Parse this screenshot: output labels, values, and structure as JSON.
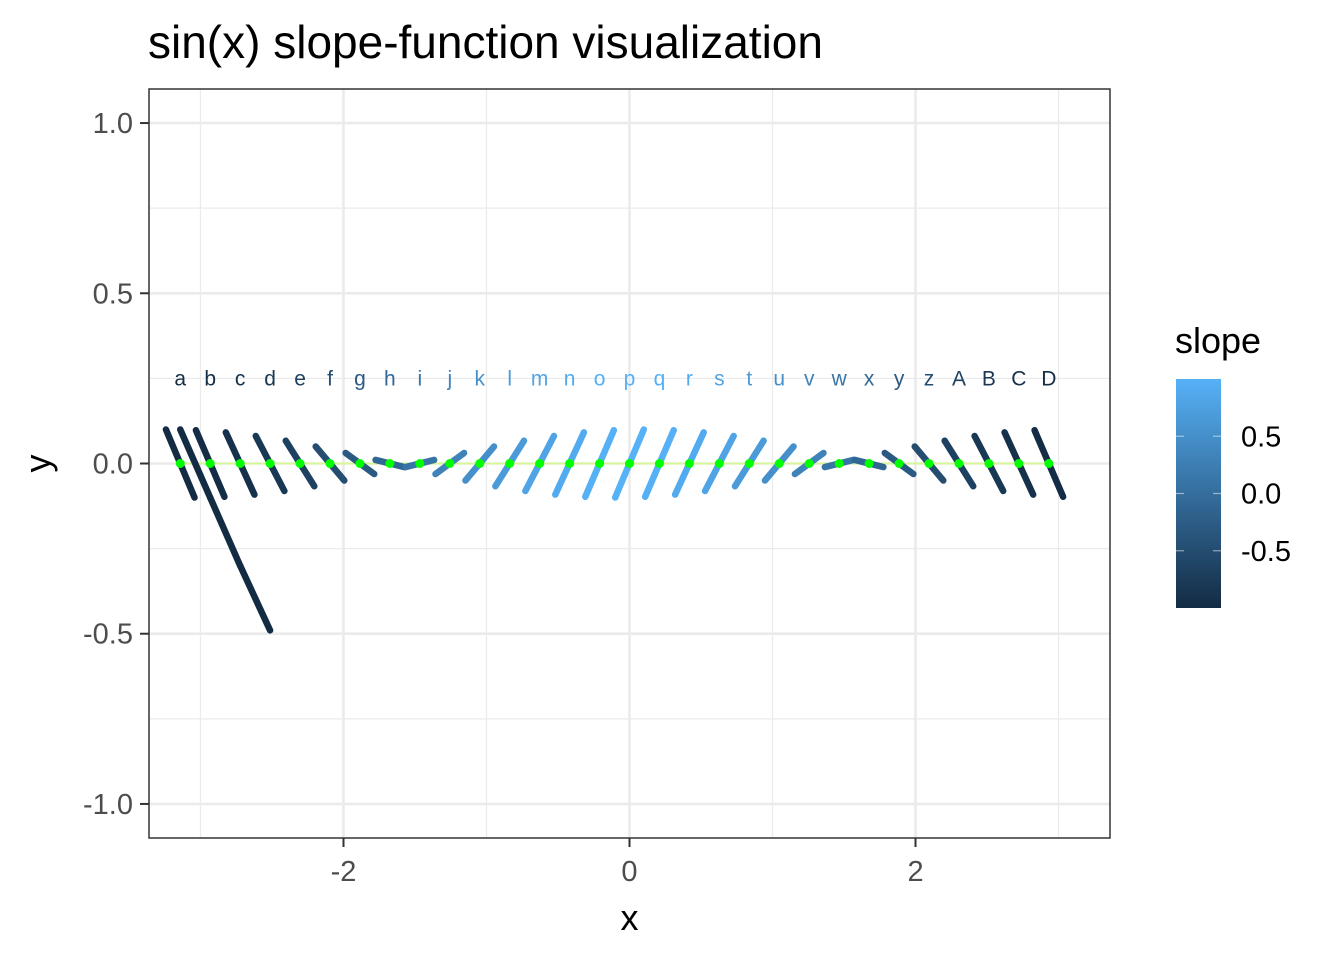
{
  "chart_data": {
    "type": "line",
    "title": "sin(x) slope-function visualization",
    "xlabel": "x",
    "ylabel": "y",
    "xlim": [
      -3.36,
      3.36
    ],
    "ylim": [
      -1.1,
      1.1
    ],
    "x_ticks": [
      {
        "value": -2,
        "label": "-2"
      },
      {
        "value": 0,
        "label": "0"
      },
      {
        "value": 2,
        "label": "2"
      }
    ],
    "y_ticks": [
      {
        "value": 1.0,
        "label": "1.0"
      },
      {
        "value": 0.5,
        "label": "0.5"
      },
      {
        "value": 0.0,
        "label": "0.0"
      },
      {
        "value": -0.5,
        "label": "-0.5"
      },
      {
        "value": -1.0,
        "label": "-1.0"
      }
    ],
    "grid": true,
    "label_y": 0.25,
    "points": [
      {
        "label": "a",
        "x": -3.1416,
        "y": 0.0,
        "slope": -1.0
      },
      {
        "label": "b",
        "x": -2.9322,
        "y": 0.0,
        "slope": -0.978
      },
      {
        "label": "c",
        "x": -2.7227,
        "y": 0.0,
        "slope": -0.914
      },
      {
        "label": "d",
        "x": -2.5133,
        "y": 0.0,
        "slope": -0.809
      },
      {
        "label": "e",
        "x": -2.3038,
        "y": 0.0,
        "slope": -0.669
      },
      {
        "label": "f",
        "x": -2.0944,
        "y": 0.0,
        "slope": -0.5
      },
      {
        "label": "g",
        "x": -1.885,
        "y": 0.0,
        "slope": -0.309
      },
      {
        "label": "h",
        "x": -1.6755,
        "y": 0.0,
        "slope": -0.105
      },
      {
        "label": "i",
        "x": -1.4661,
        "y": 0.0,
        "slope": 0.105
      },
      {
        "label": "j",
        "x": -1.2566,
        "y": 0.0,
        "slope": 0.309
      },
      {
        "label": "k",
        "x": -1.0472,
        "y": 0.0,
        "slope": 0.5
      },
      {
        "label": "l",
        "x": -0.8378,
        "y": 0.0,
        "slope": 0.669
      },
      {
        "label": "m",
        "x": -0.6283,
        "y": 0.0,
        "slope": 0.809
      },
      {
        "label": "n",
        "x": -0.4189,
        "y": 0.0,
        "slope": 0.914
      },
      {
        "label": "o",
        "x": -0.2094,
        "y": 0.0,
        "slope": 0.978
      },
      {
        "label": "p",
        "x": 0.0,
        "y": 0.0,
        "slope": 1.0
      },
      {
        "label": "q",
        "x": 0.2094,
        "y": 0.0,
        "slope": 0.978
      },
      {
        "label": "r",
        "x": 0.4189,
        "y": 0.0,
        "slope": 0.914
      },
      {
        "label": "s",
        "x": 0.6283,
        "y": 0.0,
        "slope": 0.809
      },
      {
        "label": "t",
        "x": 0.8378,
        "y": 0.0,
        "slope": 0.669
      },
      {
        "label": "u",
        "x": 1.0472,
        "y": 0.0,
        "slope": 0.5
      },
      {
        "label": "v",
        "x": 1.2566,
        "y": 0.0,
        "slope": 0.309
      },
      {
        "label": "w",
        "x": 1.4661,
        "y": 0.0,
        "slope": 0.105
      },
      {
        "label": "x",
        "x": 1.6755,
        "y": 0.0,
        "slope": -0.105
      },
      {
        "label": "y",
        "x": 1.885,
        "y": 0.0,
        "slope": -0.309
      },
      {
        "label": "z",
        "x": 2.0944,
        "y": 0.0,
        "slope": -0.5
      },
      {
        "label": "A",
        "x": 2.3038,
        "y": 0.0,
        "slope": -0.669
      },
      {
        "label": "B",
        "x": 2.5133,
        "y": 0.0,
        "slope": -0.809
      },
      {
        "label": "C",
        "x": 2.7227,
        "y": 0.0,
        "slope": -0.914
      },
      {
        "label": "D",
        "x": 2.9322,
        "y": 0.0,
        "slope": -0.978
      }
    ],
    "extra_segments": [
      {
        "x1": -3.1416,
        "y1": 0.1,
        "x2": -2.9322,
        "y2": -0.1,
        "slope": -1.0
      },
      {
        "x1": -2.9322,
        "y1": -0.1,
        "x2": -2.7227,
        "y2": -0.3,
        "slope": -1.0
      },
      {
        "x1": -2.7227,
        "y1": -0.3,
        "x2": -2.5133,
        "y2": -0.49,
        "slope": -1.0
      }
    ],
    "tangent_half_width": 0.1,
    "point_color": "#00ff00",
    "zero_line_color": "#ccff66",
    "legend": {
      "title": "slope",
      "position": "right",
      "range": [
        -1.0,
        1.0
      ],
      "low_color": "#132b43",
      "high_color": "#56b1f7",
      "ticks": [
        {
          "value": 0.5,
          "label": "0.5"
        },
        {
          "value": 0.0,
          "label": "0.0"
        },
        {
          "value": -0.5,
          "label": "-0.5"
        }
      ]
    }
  }
}
